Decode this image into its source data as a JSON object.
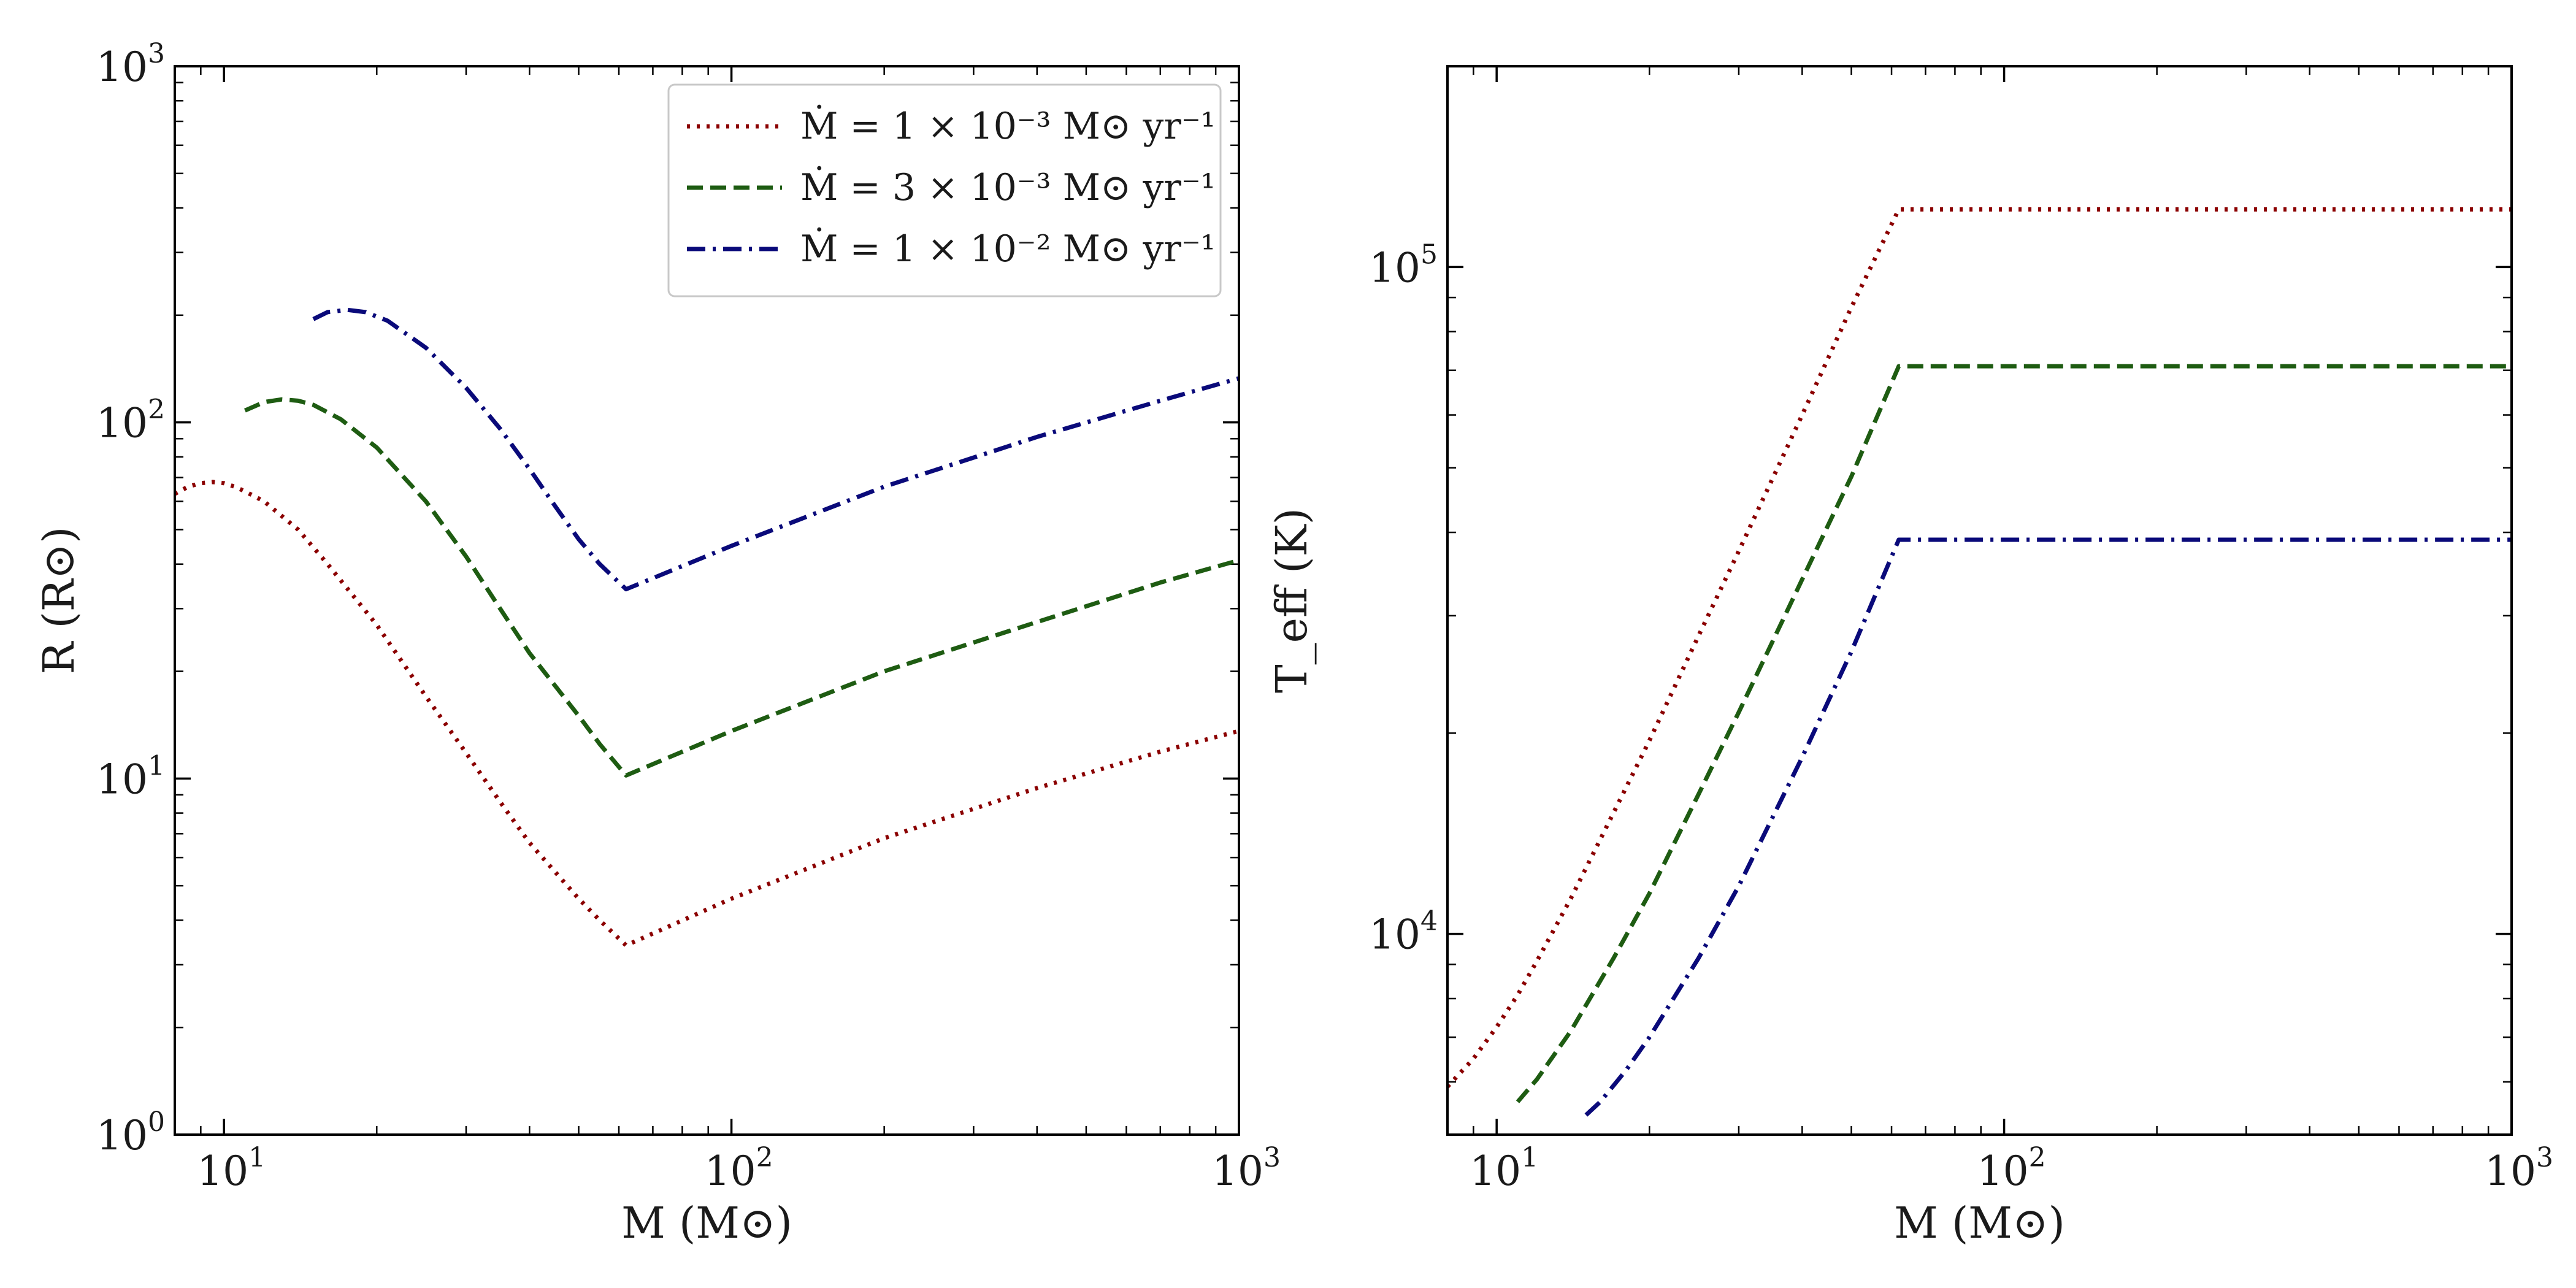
{
  "chart_data": [
    {
      "type": "line",
      "panel": "left",
      "xscale": "log",
      "yscale": "log",
      "xlim": [
        8,
        1000
      ],
      "ylim": [
        1,
        1000
      ],
      "xlabel": "M (M⊙)",
      "ylabel": "R (R⊙)",
      "xticks": [
        {
          "value": 10,
          "base": "10",
          "exp": "1"
        },
        {
          "value": 100,
          "base": "10",
          "exp": "2"
        },
        {
          "value": 1000,
          "base": "10",
          "exp": "3"
        }
      ],
      "yticks": [
        {
          "value": 1,
          "base": "10",
          "exp": "0"
        },
        {
          "value": 10,
          "base": "10",
          "exp": "1"
        },
        {
          "value": 100,
          "base": "10",
          "exp": "2"
        },
        {
          "value": 1000,
          "base": "10",
          "exp": "3"
        }
      ],
      "legend_position": "top-right",
      "series": [
        {
          "name": "Ṁ = 1 × 10⁻³ M⊙ yr⁻¹",
          "color": "#8b0000",
          "style": "dotted",
          "x": [
            8,
            8.5,
            9,
            9.5,
            10,
            10.5,
            11,
            12,
            14,
            16,
            20,
            25,
            30,
            35,
            40,
            50,
            55,
            62,
            100,
            200,
            400,
            700,
            1000
          ],
          "y": [
            63,
            66,
            67.5,
            68,
            67.5,
            66,
            64,
            60,
            50,
            40,
            27,
            17,
            11.8,
            8.6,
            6.6,
            4.6,
            4.0,
            3.4,
            4.6,
            6.8,
            9.4,
            11.9,
            13.6
          ]
        },
        {
          "name": "Ṁ = 3 × 10⁻³ M⊙ yr⁻¹",
          "color": "#1e5c12",
          "style": "dashed",
          "x": [
            11,
            12,
            13,
            14,
            15,
            17,
            20,
            25,
            30,
            35,
            40,
            50,
            55,
            62,
            100,
            200,
            400,
            700,
            1000
          ],
          "y": [
            108,
            114,
            116,
            115,
            112,
            102,
            85,
            60,
            42,
            30,
            22.5,
            15,
            12.5,
            10.2,
            13.6,
            20,
            27.5,
            35.5,
            41
          ]
        },
        {
          "name": "Ṁ = 1 × 10⁻² M⊙ yr⁻¹",
          "color": "#0a0a7a",
          "style": "dashdot",
          "x": [
            15,
            16,
            17.5,
            19,
            21,
            25,
            30,
            35,
            40,
            45,
            50,
            55,
            62,
            100,
            200,
            400,
            700,
            1000
          ],
          "y": [
            195,
            204,
            207,
            204,
            193,
            162,
            125,
            96,
            74,
            58,
            47,
            40,
            34,
            45,
            66,
            91,
            115,
            133
          ]
        }
      ]
    },
    {
      "type": "line",
      "panel": "right",
      "xscale": "log",
      "yscale": "log",
      "xlim": [
        8,
        1000
      ],
      "ylim": [
        5000,
        200000
      ],
      "xlabel": "M (M⊙)",
      "ylabel": "T_eff (K)",
      "xticks": [
        {
          "value": 10,
          "base": "10",
          "exp": "1"
        },
        {
          "value": 100,
          "base": "10",
          "exp": "2"
        },
        {
          "value": 1000,
          "base": "10",
          "exp": "3"
        }
      ],
      "yticks": [
        {
          "value": 10000,
          "base": "10",
          "exp": "4"
        },
        {
          "value": 100000,
          "base": "10",
          "exp": "5"
        }
      ],
      "series": [
        {
          "name": "Ṁ = 1 × 10⁻³ M⊙ yr⁻¹",
          "color": "#8b0000",
          "style": "dotted",
          "x": [
            8,
            9,
            10,
            11,
            12,
            14,
            17,
            20,
            25,
            30,
            40,
            50,
            62,
            100,
            1000
          ],
          "y": [
            5900,
            6500,
            7250,
            8100,
            9100,
            11300,
            15200,
            19500,
            28000,
            37500,
            60000,
            87000,
            122000,
            122000,
            122000
          ]
        },
        {
          "name": "Ṁ = 3 × 10⁻³ M⊙ yr⁻¹",
          "color": "#1e5c12",
          "style": "dashed",
          "x": [
            11,
            12,
            14,
            17,
            20,
            25,
            30,
            40,
            50,
            62,
            100,
            1000
          ],
          "y": [
            5600,
            6050,
            7150,
            9200,
            11500,
            16200,
            21500,
            34000,
            48500,
            71000,
            71000,
            71000
          ]
        },
        {
          "name": "Ṁ = 1 × 10⁻² M⊙ yr⁻¹",
          "color": "#0a0a7a",
          "style": "dashdot",
          "x": [
            15,
            16,
            18,
            20,
            25,
            30,
            40,
            50,
            62,
            100,
            1000
          ],
          "y": [
            5350,
            5600,
            6250,
            7000,
            9200,
            11800,
            18400,
            26500,
            39000,
            39000,
            39000
          ]
        }
      ]
    }
  ]
}
